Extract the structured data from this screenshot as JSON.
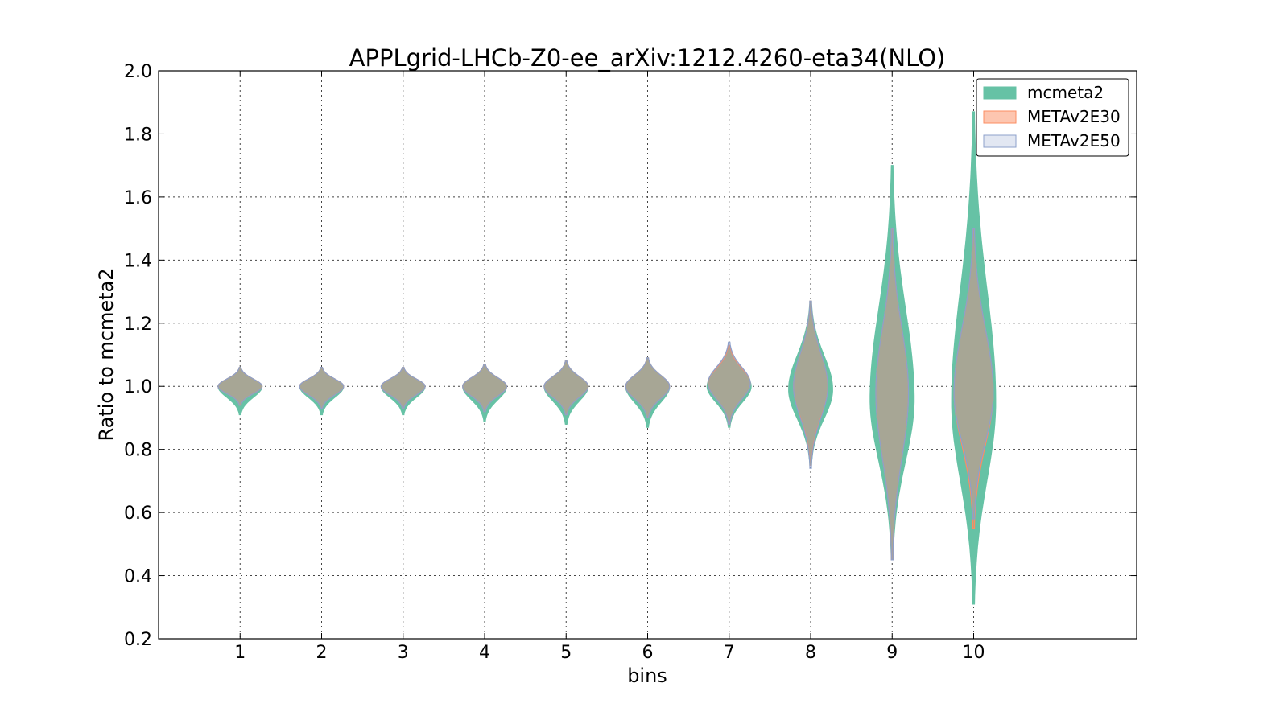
{
  "chart_data": {
    "type": "violin",
    "title": "APPLgrid-LHCb-Z0-ee_arXiv:1212.4260-eta34(NLO)",
    "xlabel": "bins",
    "ylabel": "Ratio to mcmeta2",
    "categories": [
      "1",
      "2",
      "3",
      "4",
      "5",
      "6",
      "7",
      "8",
      "9",
      "10"
    ],
    "xlim": [
      0,
      12
    ],
    "ylim": [
      0.2,
      2.0
    ],
    "yticks": [
      0.2,
      0.4,
      0.6,
      0.8,
      1.0,
      1.2,
      1.4,
      1.6,
      1.8,
      2.0
    ],
    "ytick_labels": [
      "0.2",
      "0.4",
      "0.6",
      "0.8",
      "1.0",
      "1.2",
      "1.4",
      "1.6",
      "1.8",
      "2.0"
    ],
    "grid": true,
    "legend_position": "top-right",
    "series": [
      {
        "name": "mcmeta2",
        "color": "#66c2a5",
        "edge": "#66c2a5",
        "alpha": 1.0,
        "violins": [
          {
            "bin": 1,
            "min": 0.91,
            "max": 1.06,
            "center": 1.0,
            "half_width": 0.27
          },
          {
            "bin": 2,
            "min": 0.91,
            "max": 1.06,
            "center": 1.0,
            "half_width": 0.27
          },
          {
            "bin": 3,
            "min": 0.91,
            "max": 1.06,
            "center": 1.0,
            "half_width": 0.27
          },
          {
            "bin": 4,
            "min": 0.89,
            "max": 1.07,
            "center": 1.0,
            "half_width": 0.27
          },
          {
            "bin": 5,
            "min": 0.88,
            "max": 1.08,
            "center": 1.0,
            "half_width": 0.27
          },
          {
            "bin": 6,
            "min": 0.87,
            "max": 1.09,
            "center": 1.0,
            "half_width": 0.27
          },
          {
            "bin": 7,
            "min": 0.87,
            "max": 1.13,
            "center": 1.0,
            "half_width": 0.27
          },
          {
            "bin": 8,
            "min": 0.75,
            "max": 1.27,
            "center": 0.99,
            "half_width": 0.27
          },
          {
            "bin": 9,
            "min": 0.45,
            "max": 1.7,
            "center": 0.96,
            "half_width": 0.27
          },
          {
            "bin": 10,
            "min": 0.31,
            "max": 1.87,
            "center": 0.95,
            "half_width": 0.27
          }
        ]
      },
      {
        "name": "METAv2E30",
        "color": "#fc8d62",
        "edge": "#fc8d62",
        "alpha": 0.5,
        "violins": [
          {
            "bin": 1,
            "min": 0.94,
            "max": 1.06,
            "center": 1.0,
            "half_width": 0.27
          },
          {
            "bin": 2,
            "min": 0.93,
            "max": 1.06,
            "center": 1.0,
            "half_width": 0.27
          },
          {
            "bin": 3,
            "min": 0.93,
            "max": 1.06,
            "center": 1.0,
            "half_width": 0.27
          },
          {
            "bin": 4,
            "min": 0.92,
            "max": 1.07,
            "center": 1.0,
            "half_width": 0.27
          },
          {
            "bin": 5,
            "min": 0.91,
            "max": 1.08,
            "center": 1.0,
            "half_width": 0.27
          },
          {
            "bin": 6,
            "min": 0.9,
            "max": 1.09,
            "center": 1.0,
            "half_width": 0.27
          },
          {
            "bin": 7,
            "min": 0.88,
            "max": 1.13,
            "center": 1.01,
            "half_width": 0.26
          },
          {
            "bin": 8,
            "min": 0.75,
            "max": 1.27,
            "center": 1.0,
            "half_width": 0.21
          },
          {
            "bin": 9,
            "min": 0.45,
            "max": 1.5,
            "center": 0.98,
            "half_width": 0.2
          },
          {
            "bin": 10,
            "min": 0.55,
            "max": 1.5,
            "center": 0.98,
            "half_width": 0.24
          }
        ]
      },
      {
        "name": "METAv2E50",
        "color": "#8da0cb",
        "edge": "#8da0cb",
        "alpha": 0.25,
        "violins": [
          {
            "bin": 1,
            "min": 0.94,
            "max": 1.06,
            "center": 1.0,
            "half_width": 0.27
          },
          {
            "bin": 2,
            "min": 0.93,
            "max": 1.06,
            "center": 1.0,
            "half_width": 0.27
          },
          {
            "bin": 3,
            "min": 0.93,
            "max": 1.06,
            "center": 1.0,
            "half_width": 0.27
          },
          {
            "bin": 4,
            "min": 0.92,
            "max": 1.07,
            "center": 1.0,
            "half_width": 0.27
          },
          {
            "bin": 5,
            "min": 0.91,
            "max": 1.08,
            "center": 1.0,
            "half_width": 0.27
          },
          {
            "bin": 6,
            "min": 0.9,
            "max": 1.09,
            "center": 1.0,
            "half_width": 0.27
          },
          {
            "bin": 7,
            "min": 0.88,
            "max": 1.14,
            "center": 1.01,
            "half_width": 0.26
          },
          {
            "bin": 8,
            "min": 0.74,
            "max": 1.27,
            "center": 1.0,
            "half_width": 0.21
          },
          {
            "bin": 9,
            "min": 0.45,
            "max": 1.5,
            "center": 0.98,
            "half_width": 0.2
          },
          {
            "bin": 10,
            "min": 0.58,
            "max": 1.5,
            "center": 0.98,
            "half_width": 0.24
          }
        ]
      }
    ]
  }
}
